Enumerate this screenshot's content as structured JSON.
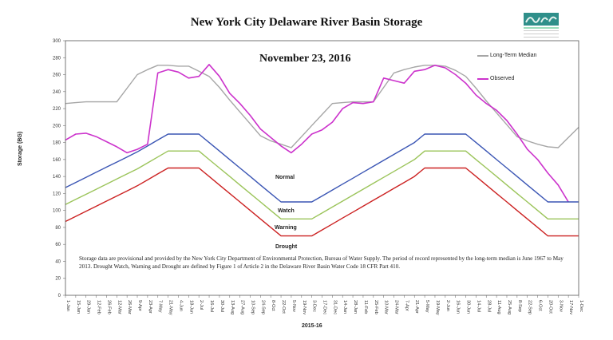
{
  "header": {
    "title": "New York City Delaware River Basin Storage",
    "logo": "drbc-logo-icon"
  },
  "annotation": {
    "date": "November 23, 2016",
    "note": "Storage data are provisional and provided by the New York City Department of Environmental Protection, Bureau of Water Supply. The period of record represented by the long-term median is June 1967 to May 2013. Drought Watch, Warning and Drought are defined by Figure 1 of Article 2 in the Delaware River Basin Water Code 18 CFR Part 410."
  },
  "zones": {
    "normal": "Normal",
    "watch": "Watch",
    "warning": "Warning",
    "drought": "Drought"
  },
  "legend": {
    "median": "Long-Term Median",
    "observed": "Observed"
  },
  "colors": {
    "median": "#a6a6a6",
    "observed": "#cc33cc",
    "normal": "#3a55b4",
    "watch": "#9bc45a",
    "warning": "#cc2222"
  },
  "chart_data": {
    "type": "line",
    "title": "New York City Delaware River Basin Storage",
    "subtitle": "November 23, 2016",
    "xlabel": "2015-16",
    "ylabel": "Storage (BG)",
    "ylim": [
      0,
      300
    ],
    "yticks": [
      0,
      20,
      40,
      60,
      80,
      100,
      120,
      140,
      160,
      180,
      200,
      220,
      240,
      260,
      280,
      300
    ],
    "grid": false,
    "legend_position": "upper right",
    "categories": [
      "1-Jan",
      "15-Jan",
      "29-Jan",
      "12-Feb",
      "26-Feb",
      "12-Mar",
      "26-Mar",
      "9-Apr",
      "23-Apr",
      "7-May",
      "21-May",
      "4-Jun",
      "18-Jun",
      "2-Jul",
      "16-Jul",
      "30-Jul",
      "13-Aug",
      "27-Aug",
      "10-Sep",
      "24-Sep",
      "8-Oct",
      "22-Oct",
      "5-Nov",
      "19-Nov",
      "3-Dec",
      "17-Dec",
      "31-Dec",
      "14-Jan",
      "28-Jan",
      "11-Feb",
      "25-Feb",
      "10-Mar",
      "24-Mar",
      "7-Apr",
      "21-Apr",
      "5-May",
      "19-May",
      "2-Jun",
      "16-Jun",
      "30-Jun",
      "14-Jul",
      "28-Jul",
      "11-Aug",
      "25-Aug",
      "8-Sep",
      "22-Sep",
      "6-Oct",
      "20-Oct",
      "3-Nov",
      "17-Nov",
      "1-Dec"
    ],
    "series": [
      {
        "name": "Long-Term Median",
        "values": [
          226,
          227,
          228,
          228,
          228,
          228,
          244,
          260,
          266,
          271,
          271,
          270,
          270,
          264,
          258,
          245,
          230,
          216,
          202,
          188,
          182,
          178,
          174,
          187,
          200,
          213,
          226,
          227,
          228,
          228,
          228,
          245,
          262,
          266,
          269,
          271,
          271,
          270,
          265,
          258,
          244,
          229,
          215,
          201,
          187,
          182,
          178,
          175,
          174,
          186,
          198
        ]
      },
      {
        "name": "Observed",
        "values": [
          183,
          190,
          191,
          187,
          181,
          175,
          168,
          172,
          178,
          262,
          266,
          263,
          256,
          258,
          272,
          258,
          238,
          226,
          212,
          196,
          186,
          176,
          168,
          178,
          190,
          195,
          204,
          220,
          227,
          226,
          228,
          256,
          253,
          250,
          264,
          266,
          271,
          268,
          260,
          250,
          236,
          226,
          218,
          206,
          190,
          172,
          160,
          144,
          130,
          110,
          null
        ]
      },
      {
        "name": "Normal",
        "values": [
          127,
          133,
          139,
          145,
          151,
          157,
          163,
          169,
          176,
          183,
          190,
          190,
          190,
          190,
          180,
          170,
          160,
          150,
          140,
          130,
          120,
          110,
          110,
          110,
          110,
          117,
          124,
          131,
          138,
          145,
          152,
          159,
          166,
          173,
          180,
          190,
          190,
          190,
          190,
          190,
          180,
          170,
          160,
          150,
          140,
          130,
          120,
          110,
          110,
          110,
          110
        ]
      },
      {
        "name": "Watch",
        "values": [
          107,
          113,
          119,
          125,
          131,
          137,
          143,
          149,
          156,
          163,
          170,
          170,
          170,
          170,
          160,
          150,
          140,
          130,
          120,
          110,
          100,
          90,
          90,
          90,
          90,
          97,
          104,
          111,
          118,
          125,
          132,
          139,
          146,
          153,
          160,
          170,
          170,
          170,
          170,
          170,
          160,
          150,
          140,
          130,
          120,
          110,
          100,
          90,
          90,
          90,
          90
        ]
      },
      {
        "name": "Warning",
        "values": [
          87,
          93,
          99,
          105,
          111,
          117,
          123,
          129,
          136,
          143,
          150,
          150,
          150,
          150,
          140,
          130,
          120,
          110,
          100,
          90,
          80,
          70,
          70,
          70,
          70,
          77,
          84,
          91,
          98,
          105,
          112,
          119,
          126,
          133,
          140,
          150,
          150,
          150,
          150,
          150,
          140,
          130,
          120,
          110,
          100,
          90,
          80,
          70,
          70,
          70,
          70
        ]
      }
    ],
    "zone_labels": [
      "Normal",
      "Watch",
      "Warning",
      "Drought"
    ],
    "annotations": [
      "November 23, 2016"
    ]
  }
}
